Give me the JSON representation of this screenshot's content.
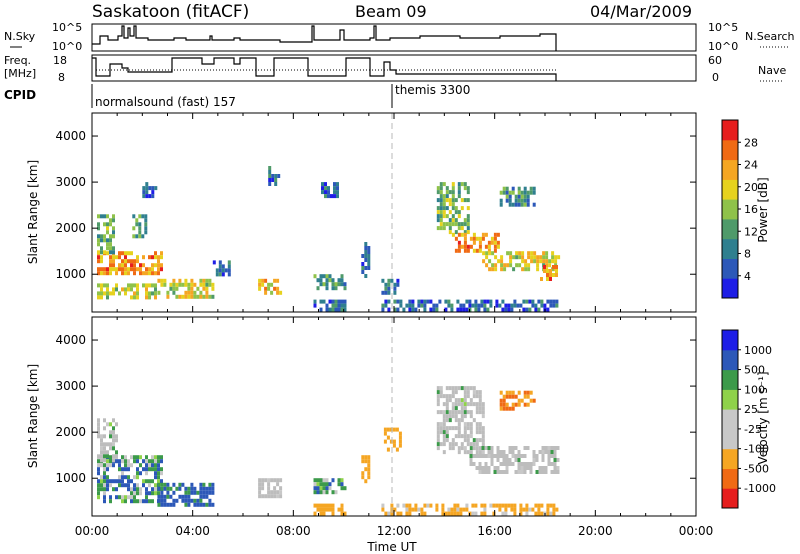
{
  "header": {
    "station": "Saskatoon (fitACF)",
    "beam": "Beam 09",
    "date": "04/Mar/2009"
  },
  "parameter_panels": {
    "nsky_label": "N.Sky",
    "nsky_ticks": [
      "10^5",
      "10^0"
    ],
    "nsearch_label": "N.Search",
    "nsearch_ticks": [
      "10^5",
      "10^0"
    ],
    "freq_label_line1": "Freq.",
    "freq_label_line2": "[MHz]",
    "freq_ticks": [
      "18",
      "8"
    ],
    "nave_label": "Nave",
    "nave_ticks": [
      "60",
      "0"
    ],
    "cpid_label": "CPID",
    "cpid_modes": [
      {
        "name": "normalsound (fast) 157",
        "start_hour": 0
      },
      {
        "name": "themis 3300",
        "start_hour": 12
      }
    ]
  },
  "axes": {
    "ylabel": "Slant Range [km]",
    "yticks": [
      "4000",
      "3000",
      "2000",
      "1000"
    ],
    "xlabel": "Time UT",
    "xticks": [
      "00:00",
      "04:00",
      "08:00",
      "12:00",
      "16:00",
      "20:00",
      "00:00"
    ]
  },
  "colors": {
    "power": [
      "#1e1ee6",
      "#2c58b8",
      "#2f7f8f",
      "#4f9a6a",
      "#8fc24a",
      "#e6d21e",
      "#f5a623",
      "#f06a14",
      "#e61e1e"
    ],
    "velocity": [
      "#e61e1e",
      "#f06a14",
      "#f5a623",
      "#c8c8c8",
      "#c8c8c8",
      "#8fd24a",
      "#3c9a4a",
      "#2c58b8",
      "#1e1ee6"
    ],
    "ground_gray": "#bdbdbd",
    "dashed_marker": "#b8b8b8"
  },
  "colorbars": {
    "power": {
      "label": "Power [dB]",
      "ticks": [
        "28",
        "24",
        "20",
        "16",
        "12",
        "8",
        "4"
      ]
    },
    "velocity": {
      "label": "Velocity [m s⁻¹]",
      "ticks": [
        "1000",
        "500",
        "100",
        "25",
        "-25",
        "-100",
        "-500",
        "-1000"
      ]
    }
  },
  "chart_data": [
    {
      "type": "heatmap",
      "name": "power",
      "xlabel": "Time UT",
      "ylabel": "Slant Range [km]",
      "xlim_hours": [
        0,
        24
      ],
      "ylim_km": [
        180,
        4500
      ],
      "colorbar": {
        "label": "Power [dB]",
        "ticks": [
          4,
          8,
          12,
          16,
          20,
          24,
          28
        ],
        "range": [
          0,
          30
        ]
      },
      "marker_hour": 12,
      "echo_regions": [
        {
          "t0": 0.2,
          "t1": 2.8,
          "r0": 1000,
          "r1": 1500,
          "power": 22
        },
        {
          "t0": 0.2,
          "t1": 2.5,
          "r0": 500,
          "r1": 800,
          "power": 16
        },
        {
          "t0": 2.6,
          "t1": 4.8,
          "r0": 500,
          "r1": 900,
          "power": 18
        },
        {
          "t0": 4.8,
          "t1": 5.4,
          "r0": 1000,
          "r1": 1300,
          "power": 8
        },
        {
          "t0": 0.2,
          "t1": 0.8,
          "r0": 1500,
          "r1": 2300,
          "power": 12
        },
        {
          "t0": 1.6,
          "t1": 2.1,
          "r0": 1800,
          "r1": 2300,
          "power": 10
        },
        {
          "t0": 2.0,
          "t1": 2.5,
          "r0": 2700,
          "r1": 3000,
          "power": 6
        },
        {
          "t0": 6.6,
          "t1": 7.5,
          "r0": 600,
          "r1": 900,
          "power": 20
        },
        {
          "t0": 7.0,
          "t1": 7.4,
          "r0": 2950,
          "r1": 3350,
          "power": 8
        },
        {
          "t0": 8.8,
          "t1": 10.0,
          "r0": 700,
          "r1": 1000,
          "power": 10
        },
        {
          "t0": 8.8,
          "t1": 10.0,
          "r0": 250,
          "r1": 450,
          "power": 8
        },
        {
          "t0": 9.1,
          "t1": 9.8,
          "r0": 2700,
          "r1": 3000,
          "power": 6
        },
        {
          "t0": 10.7,
          "t1": 11.0,
          "r0": 900,
          "r1": 1700,
          "power": 6
        },
        {
          "t0": 11.5,
          "t1": 12.2,
          "r0": 600,
          "r1": 900,
          "power": 8
        },
        {
          "t0": 11.5,
          "t1": 18.5,
          "r0": 250,
          "r1": 450,
          "power": 6
        },
        {
          "t0": 13.7,
          "t1": 15.0,
          "r0": 1900,
          "r1": 3000,
          "power": 14
        },
        {
          "t0": 14.3,
          "t1": 16.2,
          "r0": 1500,
          "r1": 1900,
          "power": 22
        },
        {
          "t0": 15.5,
          "t1": 18.5,
          "r0": 1100,
          "r1": 1500,
          "power": 18
        },
        {
          "t0": 16.2,
          "t1": 17.6,
          "r0": 2500,
          "r1": 2900,
          "power": 10
        },
        {
          "t0": 17.8,
          "t1": 18.5,
          "r0": 900,
          "r1": 1200,
          "power": 24
        }
      ]
    },
    {
      "type": "heatmap",
      "name": "velocity",
      "xlabel": "Time UT",
      "ylabel": "Slant Range [km]",
      "xlim_hours": [
        0,
        24
      ],
      "ylim_km": [
        180,
        4500
      ],
      "colorbar": {
        "label": "Velocity [m s⁻¹]",
        "ticks": [
          -1000,
          -500,
          -100,
          -25,
          25,
          100,
          500,
          1000
        ]
      },
      "marker_hour": 12,
      "echo_regions": [
        {
          "t0": 0.2,
          "t1": 2.8,
          "r0": 500,
          "r1": 1500,
          "velocity": 60,
          "ground": false
        },
        {
          "t0": 0.2,
          "t1": 1.0,
          "r0": 1400,
          "r1": 2300,
          "velocity": 0,
          "ground": true
        },
        {
          "t0": 2.6,
          "t1": 4.8,
          "r0": 450,
          "r1": 900,
          "velocity": 150,
          "ground": false
        },
        {
          "t0": 6.6,
          "t1": 7.5,
          "r0": 600,
          "r1": 1000,
          "velocity": 0,
          "ground": true
        },
        {
          "t0": 8.8,
          "t1": 10.0,
          "r0": 700,
          "r1": 1000,
          "velocity": 60,
          "ground": false
        },
        {
          "t0": 8.8,
          "t1": 10.0,
          "r0": 250,
          "r1": 450,
          "velocity": -300,
          "ground": false
        },
        {
          "t0": 10.7,
          "t1": 11.0,
          "r0": 900,
          "r1": 1500,
          "velocity": -300,
          "ground": false
        },
        {
          "t0": 11.6,
          "t1": 12.2,
          "r0": 1600,
          "r1": 2100,
          "velocity": -400,
          "ground": false
        },
        {
          "t0": 11.5,
          "t1": 18.5,
          "r0": 250,
          "r1": 450,
          "velocity": -150,
          "ground": false
        },
        {
          "t0": 13.7,
          "t1": 15.5,
          "r0": 1600,
          "r1": 3000,
          "velocity": 0,
          "ground": true
        },
        {
          "t0": 15.0,
          "t1": 18.5,
          "r0": 1100,
          "r1": 1700,
          "velocity": 0,
          "ground": true
        },
        {
          "t0": 16.2,
          "t1": 17.6,
          "r0": 2500,
          "r1": 2900,
          "velocity": -500,
          "ground": false
        }
      ]
    }
  ]
}
